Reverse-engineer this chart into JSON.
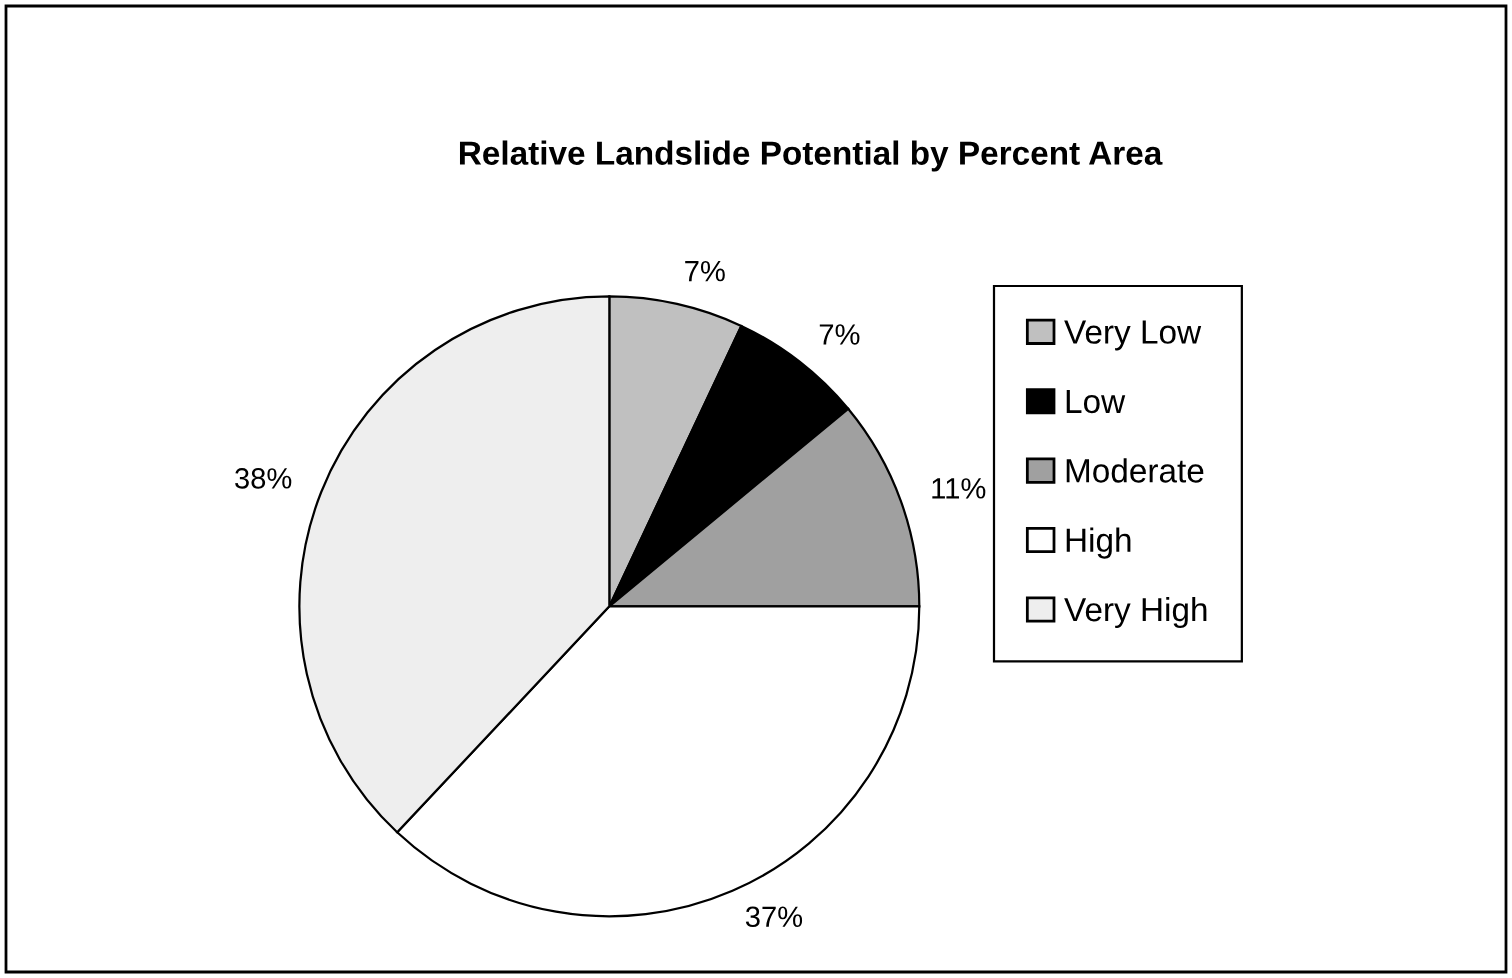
{
  "chart_data": {
    "type": "pie",
    "title": "Relative Landslide Potential by Percent Area",
    "categories": [
      "Very Low",
      "Low",
      "Moderate",
      "High",
      "Very High"
    ],
    "values": [
      7,
      7,
      11,
      37,
      38
    ],
    "colors": [
      "#c0c0c0",
      "#000000",
      "#a0a0a0",
      "#ffffff",
      "#eeeeee"
    ],
    "value_labels": [
      "7%",
      "7%",
      "11%",
      "37%",
      "38%"
    ],
    "legend": "right"
  }
}
